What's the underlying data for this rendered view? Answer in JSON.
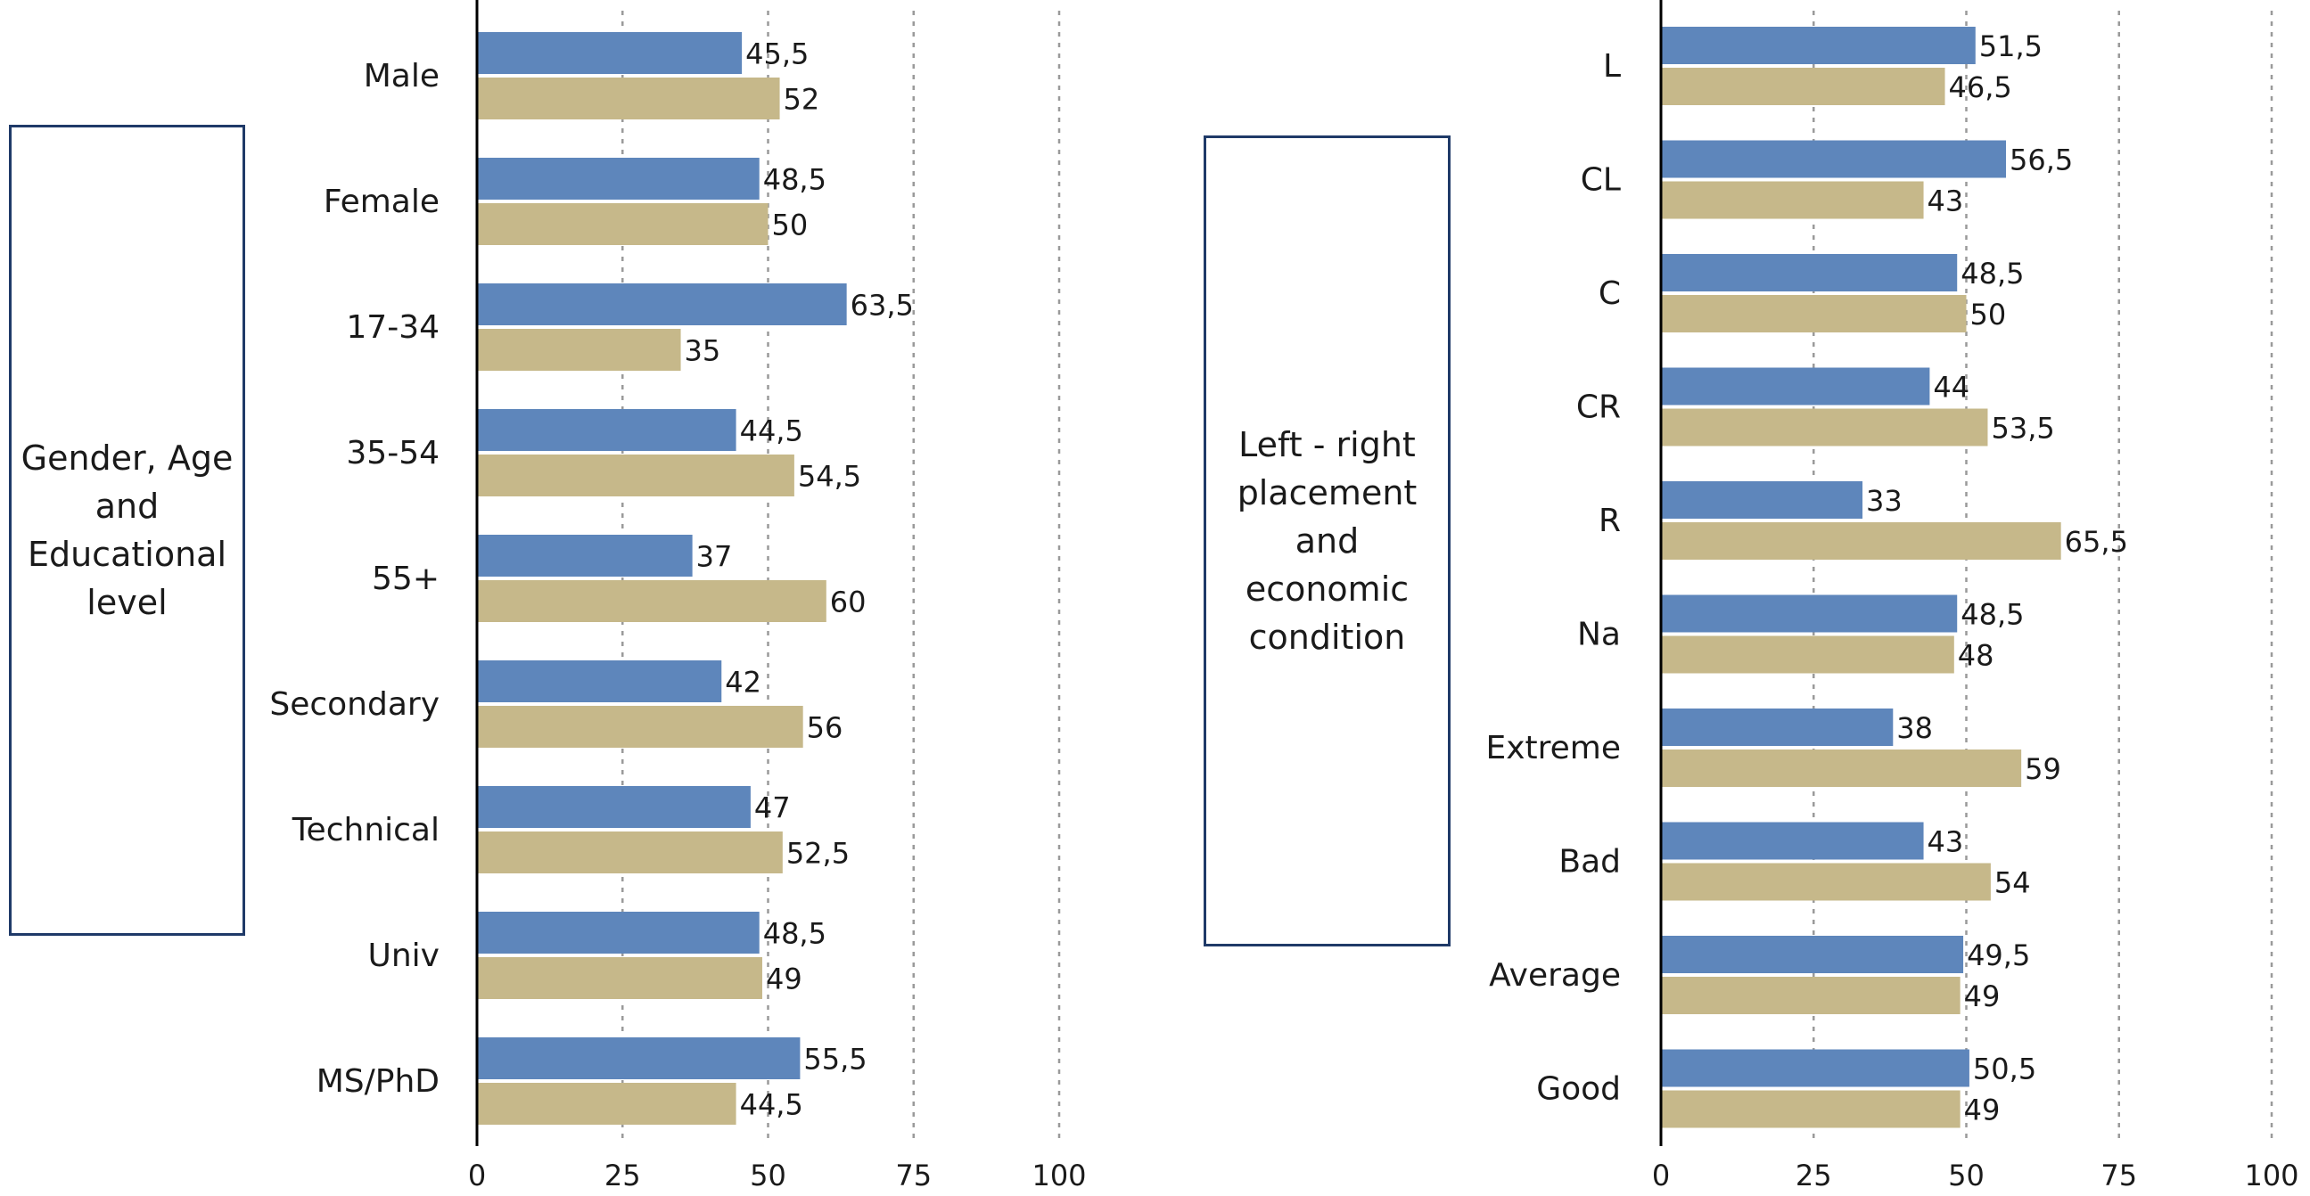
{
  "colors": {
    "series_a": "#5e86bb",
    "series_b": "#c6b88a",
    "axis": "#000000",
    "grid": "#9a9a9a",
    "box_border": "#1f3a68"
  },
  "chart_data": [
    {
      "type": "bar",
      "orientation": "horizontal",
      "group_label": "Gender, Age and Educational level",
      "categories": [
        "Male",
        "Female",
        "17-34",
        "35-54",
        "55+",
        "Secondary",
        "Technical",
        "Univ",
        "MS/PhD"
      ],
      "series": [
        {
          "values": [
            45.5,
            48.5,
            63.5,
            44.5,
            37,
            42,
            47,
            48.5,
            55.5
          ],
          "labels": [
            "45,5",
            "48,5",
            "63,5",
            "44,5",
            "37",
            "42",
            "47",
            "48,5",
            "55,5"
          ]
        },
        {
          "values": [
            52,
            50,
            35,
            54.5,
            60,
            56,
            52.5,
            49,
            44.5
          ],
          "labels": [
            "52",
            "50",
            "35",
            "54,5",
            "60",
            "56",
            "52,5",
            "49",
            "44,5"
          ]
        }
      ],
      "xlim": [
        0,
        100
      ],
      "xticks": [
        "0",
        "25",
        "50",
        "75",
        "100"
      ],
      "grid": "vertical dotted"
    },
    {
      "type": "bar",
      "orientation": "horizontal",
      "group_label": "Left - right placement and economic condition",
      "categories": [
        "L",
        "CL",
        "C",
        "CR",
        "R",
        "Na",
        "Extreme",
        "Bad",
        "Average",
        "Good"
      ],
      "series": [
        {
          "values": [
            51.5,
            56.5,
            48.5,
            44,
            33,
            48.5,
            38,
            43,
            49.5,
            50.5
          ],
          "labels": [
            "51,5",
            "56,5",
            "48,5",
            "44",
            "33",
            "48,5",
            "38",
            "43",
            "49,5",
            "50,5"
          ]
        },
        {
          "values": [
            46.5,
            43,
            50,
            53.5,
            65.5,
            48,
            59,
            54,
            49,
            49
          ],
          "labels": [
            "46,5",
            "43",
            "50",
            "53,5",
            "65,5",
            "48",
            "59",
            "54",
            "49",
            "49"
          ]
        }
      ],
      "xlim": [
        0,
        100
      ],
      "xticks": [
        "0",
        "25",
        "50",
        "75",
        "100"
      ],
      "grid": "vertical dotted"
    }
  ]
}
